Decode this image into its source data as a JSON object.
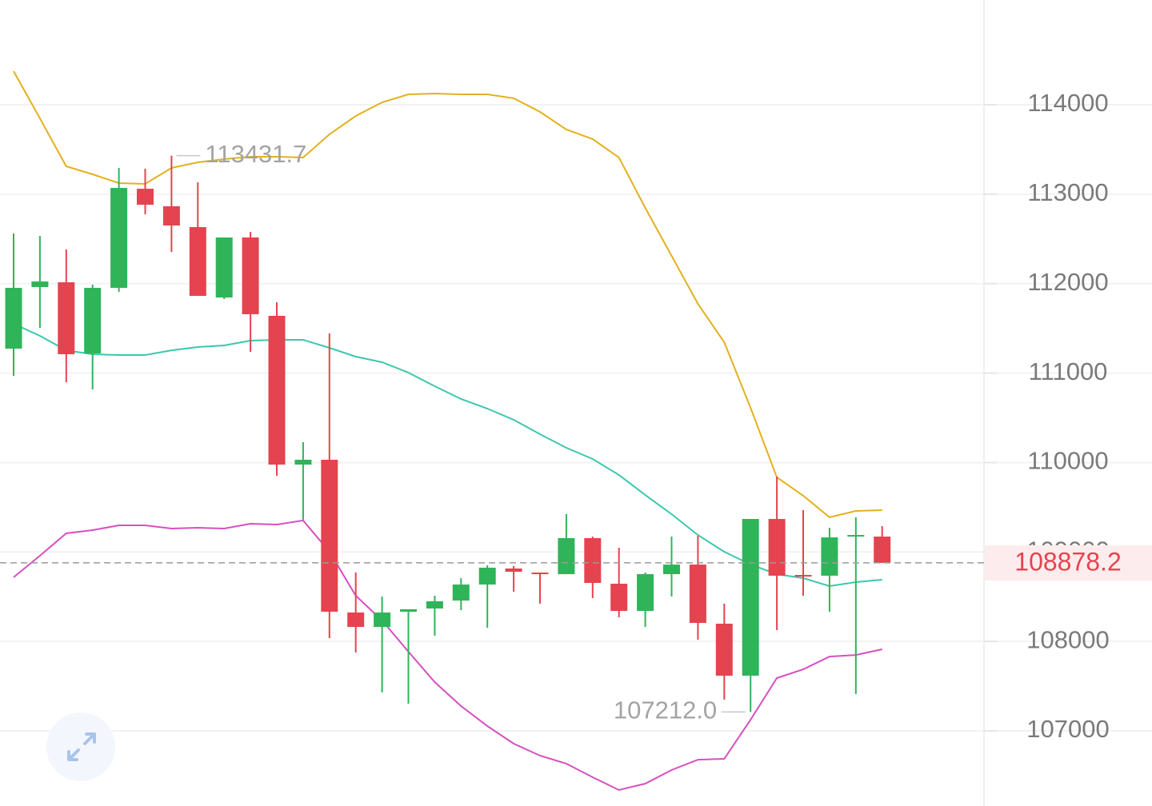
{
  "chart_data": {
    "type": "candlestick",
    "up_color": "#2fb45a",
    "down_color": "#e5434f",
    "open": [
      111273,
      111962,
      112015,
      111220,
      111953,
      113061,
      112865,
      112632,
      111845,
      112516,
      111640,
      109977,
      110031,
      108323,
      108162,
      108332,
      108368,
      108457,
      108636,
      108815,
      108770,
      108752,
      109155,
      108645,
      108341,
      108752,
      108859,
      108198,
      107617,
      109369,
      108743,
      108735,
      109172,
      109172
    ],
    "high": [
      112561,
      112534,
      112382,
      111989,
      113294,
      113285,
      113431.7,
      113133,
      112516,
      112579,
      111792,
      110227,
      111443,
      108770,
      108502,
      108359,
      108511,
      108707,
      108851,
      108842,
      108770,
      109423,
      109172,
      109047,
      108770,
      109172,
      109181,
      108422,
      109369,
      109843,
      109468,
      109271,
      109387,
      109289
    ],
    "low": [
      110969,
      111506,
      110898,
      110817,
      111908,
      112775,
      112355,
      111863,
      111828,
      111238,
      109852,
      109360,
      108037,
      107876,
      107429,
      107304,
      108064,
      108350,
      108153,
      108556,
      108422,
      108752,
      108484,
      108270,
      108162,
      108502,
      108019,
      107349,
      107212.0,
      108127,
      108511,
      108332,
      107411,
      108878.2
    ],
    "close": [
      111953,
      112024,
      111211,
      111953,
      113070,
      112882,
      112650,
      111863,
      112516,
      111658,
      109977,
      110031,
      108332,
      108162,
      108323,
      108359,
      108449,
      108636,
      108824,
      108779,
      108752,
      109155,
      108654,
      108341,
      108752,
      108859,
      108207,
      107617,
      109369,
      108735,
      108725,
      109163,
      109190,
      108878.2
    ],
    "bands": [
      {
        "color": "#e3b11f",
        "values": [
          114375,
          113848,
          113312,
          113222,
          113124,
          113115,
          113294,
          113356,
          113392,
          113419,
          113419,
          113410,
          113669,
          113875,
          114027,
          114116,
          114125,
          114116,
          114116,
          114072,
          113920,
          113723,
          113616,
          113410,
          112847,
          112310,
          111774,
          111345,
          110612,
          109834,
          109629,
          109388,
          109459,
          109468
        ]
      },
      {
        "color": "#3cc7ad",
        "values": [
          111551,
          111416,
          111255,
          111211,
          111202,
          111202,
          111255,
          111291,
          111309,
          111363,
          111372,
          111372,
          111282,
          111184,
          111121,
          111005,
          110853,
          110710,
          110603,
          110478,
          110317,
          110165,
          110040,
          109861,
          109637,
          109423,
          109190,
          109003,
          108860,
          108752,
          108708,
          108618,
          108663,
          108690
        ]
      },
      {
        "color": "#d64fc0",
        "values": [
          108717,
          108958,
          109208,
          109244,
          109298,
          109298,
          109262,
          109271,
          109262,
          109316,
          109307,
          109352,
          109003,
          108511,
          108234,
          107885,
          107546,
          107277,
          107054,
          106857,
          106723,
          106634,
          106482,
          106339,
          106410,
          106562,
          106678,
          106687,
          107125,
          107590,
          107688,
          107831,
          107849,
          107912
        ]
      }
    ],
    "high_label": "113431.7",
    "low_label": "107212.0",
    "last_price": 108878.2,
    "last_price_label": "108878.2",
    "ylim": [
      106160,
      115171
    ],
    "yticks": [
      107000,
      108000,
      109000,
      110000,
      111000,
      112000,
      113000,
      114000
    ],
    "grid": true
  }
}
